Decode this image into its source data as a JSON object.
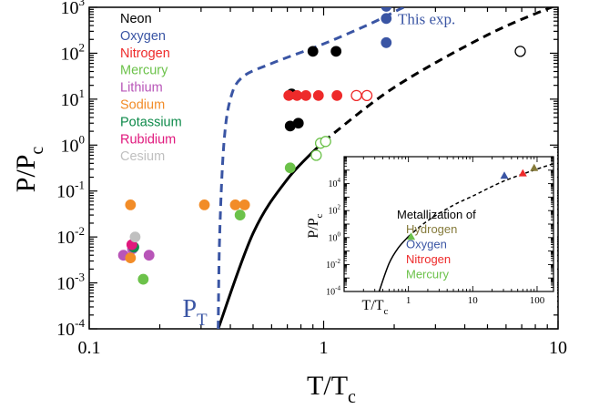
{
  "chart_data": [
    {
      "type": "scatter",
      "title": "",
      "xlabel": "T/T",
      "xlabel_sub": "c",
      "ylabel": "P/P",
      "ylabel_sub": "c",
      "xscale": "log",
      "yscale": "log",
      "xlim": [
        0.1,
        10
      ],
      "ylim": [
        0.0001,
        1000
      ],
      "x_tick_labels": [
        {
          "v": 0.1,
          "t": "0.1"
        },
        {
          "v": 1,
          "t": "1"
        },
        {
          "v": 10,
          "t": "10"
        }
      ],
      "y_tick_labels": [
        {
          "v": 0.0001,
          "b": "10",
          "e": "-4"
        },
        {
          "v": 0.001,
          "b": "10",
          "e": "-3"
        },
        {
          "v": 0.01,
          "b": "10",
          "e": "-2"
        },
        {
          "v": 0.1,
          "b": "10",
          "e": "-1"
        },
        {
          "v": 1,
          "b": "10",
          "e": "0"
        },
        {
          "v": 10,
          "b": "10",
          "e": "1"
        },
        {
          "v": 100,
          "b": "10",
          "e": "2"
        },
        {
          "v": 1000,
          "b": "10",
          "e": "3"
        }
      ],
      "legend_position": "top-left",
      "legend": [
        {
          "name": "Neon",
          "color": "#000000"
        },
        {
          "name": "Oxygen",
          "color": "#3a55a4"
        },
        {
          "name": "Nitrogen",
          "color": "#ee2a2a"
        },
        {
          "name": "Mercury",
          "color": "#6cc24a"
        },
        {
          "name": "Lithium",
          "color": "#b855b8"
        },
        {
          "name": "Sodium",
          "color": "#f28c28"
        },
        {
          "name": "Potassium",
          "color": "#0e8a4a"
        },
        {
          "name": "Rubidium",
          "color": "#e0197d"
        },
        {
          "name": "Cesium",
          "color": "#c0c0c0"
        }
      ],
      "points": [
        {
          "series": "Neon",
          "color": "#000000",
          "x": 0.9,
          "y": 110,
          "filled": true
        },
        {
          "series": "Neon",
          "color": "#000000",
          "x": 1.13,
          "y": 110,
          "filled": true
        },
        {
          "series": "Neon",
          "color": "#000000",
          "x": 0.73,
          "y": 13,
          "filled": true
        },
        {
          "series": "Neon",
          "color": "#000000",
          "x": 0.72,
          "y": 2.6,
          "filled": true
        },
        {
          "series": "Neon",
          "color": "#000000",
          "x": 0.78,
          "y": 3.0,
          "filled": true
        },
        {
          "series": "Neon",
          "color": "#000000",
          "x": 6.9,
          "y": 110,
          "filled": false
        },
        {
          "series": "Oxygen",
          "color": "#3a55a4",
          "x": 1.85,
          "y": 1050,
          "filled": true
        },
        {
          "series": "Oxygen",
          "color": "#3a55a4",
          "x": 1.85,
          "y": 570,
          "filled": true
        },
        {
          "series": "Oxygen",
          "color": "#3a55a4",
          "x": 1.85,
          "y": 170,
          "filled": true
        },
        {
          "series": "Nitrogen",
          "color": "#ee2a2a",
          "x": 0.71,
          "y": 12,
          "filled": true
        },
        {
          "series": "Nitrogen",
          "color": "#ee2a2a",
          "x": 0.77,
          "y": 12,
          "filled": true
        },
        {
          "series": "Nitrogen",
          "color": "#ee2a2a",
          "x": 0.84,
          "y": 12,
          "filled": true
        },
        {
          "series": "Nitrogen",
          "color": "#ee2a2a",
          "x": 0.95,
          "y": 12,
          "filled": true
        },
        {
          "series": "Nitrogen",
          "color": "#ee2a2a",
          "x": 1.14,
          "y": 12,
          "filled": true
        },
        {
          "series": "Nitrogen",
          "color": "#ee2a2a",
          "x": 1.38,
          "y": 12,
          "filled": false
        },
        {
          "series": "Nitrogen",
          "color": "#ee2a2a",
          "x": 1.53,
          "y": 12,
          "filled": false
        },
        {
          "series": "Mercury",
          "color": "#6cc24a",
          "x": 0.72,
          "y": 0.32,
          "filled": true
        },
        {
          "series": "Mercury",
          "color": "#6cc24a",
          "x": 0.44,
          "y": 0.03,
          "filled": true
        },
        {
          "series": "Mercury",
          "color": "#6cc24a",
          "x": 0.17,
          "y": 0.0012,
          "filled": true
        },
        {
          "series": "Mercury",
          "color": "#6cc24a",
          "x": 0.93,
          "y": 0.6,
          "filled": false
        },
        {
          "series": "Mercury",
          "color": "#6cc24a",
          "x": 0.97,
          "y": 1.1,
          "filled": false
        },
        {
          "series": "Mercury",
          "color": "#6cc24a",
          "x": 1.02,
          "y": 1.2,
          "filled": false
        },
        {
          "series": "Lithium",
          "color": "#b855b8",
          "x": 0.14,
          "y": 0.004,
          "filled": true
        },
        {
          "series": "Lithium",
          "color": "#b855b8",
          "x": 0.18,
          "y": 0.004,
          "filled": true
        },
        {
          "series": "Lithium",
          "color": "#b855b8",
          "x": 0.153,
          "y": 0.0055,
          "filled": true
        },
        {
          "series": "Sodium",
          "color": "#f28c28",
          "x": 0.15,
          "y": 0.05,
          "filled": true
        },
        {
          "series": "Sodium",
          "color": "#f28c28",
          "x": 0.31,
          "y": 0.05,
          "filled": true
        },
        {
          "series": "Sodium",
          "color": "#f28c28",
          "x": 0.42,
          "y": 0.05,
          "filled": true
        },
        {
          "series": "Sodium",
          "color": "#f28c28",
          "x": 0.46,
          "y": 0.05,
          "filled": true
        },
        {
          "series": "Sodium",
          "color": "#f28c28",
          "x": 0.15,
          "y": 0.0035,
          "filled": true
        },
        {
          "series": "Potassium",
          "color": "#0e8a4a",
          "x": 0.155,
          "y": 0.006,
          "filled": true
        },
        {
          "series": "Rubidium",
          "color": "#e0197d",
          "x": 0.152,
          "y": 0.0068,
          "filled": true
        },
        {
          "series": "Cesium",
          "color": "#c0c0c0",
          "x": 0.157,
          "y": 0.01,
          "filled": true
        }
      ],
      "phase_lines": [
        {
          "style": "solid",
          "color": "#000000",
          "points": [
            [
              0.355,
              0.0001
            ],
            [
              0.5,
              0.012
            ],
            [
              0.7,
              0.18
            ],
            [
              1.0,
              1.2
            ]
          ]
        },
        {
          "style": "dashed",
          "color": "#000000",
          "points": [
            [
              1.0,
              1.2
            ],
            [
              2.0,
              18
            ],
            [
              5.0,
              250
            ],
            [
              10.0,
              1150
            ]
          ]
        },
        {
          "style": "dashed",
          "color": "#3a55a4",
          "points": [
            [
              0.355,
              0.0001
            ],
            [
              0.36,
              0.01
            ],
            [
              0.375,
              1
            ],
            [
              0.4,
              10
            ],
            [
              0.45,
              30
            ],
            [
              0.6,
              60
            ],
            [
              1.0,
              160
            ],
            [
              1.6,
              450
            ],
            [
              2.2,
              1000
            ],
            [
              2.6,
              1300
            ]
          ]
        }
      ],
      "annotations": [
        {
          "text": "This exp.",
          "color": "#3a55a4",
          "x": 2.0,
          "y": 570
        },
        {
          "text": "P",
          "sub": "T",
          "color": "#3a55a4",
          "x": 0.25,
          "y": 0.00018
        }
      ]
    },
    {
      "type": "scatter",
      "title": "Metallization of",
      "xlabel": "T/T",
      "xlabel_sub": "c",
      "ylabel": "P/P",
      "ylabel_sub": "c",
      "xscale": "log",
      "yscale": "log",
      "xlim": [
        0.1,
        180
      ],
      "ylim": [
        0.0001,
        1000000
      ],
      "x_tick_labels": [
        {
          "v": 1,
          "t": "1"
        },
        {
          "v": 10,
          "t": "10"
        },
        {
          "v": 100,
          "t": "100"
        }
      ],
      "y_tick_labels": [
        {
          "v": 0.0001,
          "b": "10",
          "e": "-4"
        },
        {
          "v": 0.01,
          "b": "10",
          "e": "-2"
        },
        {
          "v": 1,
          "b": "10",
          "e": "0"
        },
        {
          "v": 100,
          "b": "10",
          "e": "2"
        },
        {
          "v": 10000,
          "b": "10",
          "e": "4"
        }
      ],
      "legend_position": "center-right",
      "legend": [
        {
          "name": "Hydrogen",
          "color": "#857a3a"
        },
        {
          "name": "Oxygen",
          "color": "#3a55a4"
        },
        {
          "name": "Nitrogen",
          "color": "#ee2a2a"
        },
        {
          "name": "Mercury",
          "color": "#6cc24a"
        }
      ],
      "points": [
        {
          "series": "Hydrogen",
          "color": "#857a3a",
          "x": 90,
          "y": 150000
        },
        {
          "series": "Oxygen",
          "color": "#3a55a4",
          "x": 31,
          "y": 40000
        },
        {
          "series": "Nitrogen",
          "color": "#ee2a2a",
          "x": 60,
          "y": 60000
        },
        {
          "series": "Mercury",
          "color": "#6cc24a",
          "x": 1.1,
          "y": 1.2
        }
      ],
      "phase_lines": [
        {
          "style": "solid",
          "color": "#000000",
          "points": [
            [
              0.35,
              0.0001
            ],
            [
              0.5,
              0.012
            ],
            [
              0.7,
              0.18
            ],
            [
              1.0,
              1.2
            ]
          ]
        },
        {
          "style": "dashed",
          "color": "#000000",
          "points": [
            [
              1.0,
              1.2
            ],
            [
              2.0,
              18
            ],
            [
              5.0,
              250
            ],
            [
              10.0,
              1200
            ],
            [
              30,
              15000
            ],
            [
              100,
              120000
            ],
            [
              180,
              300000
            ]
          ]
        }
      ]
    }
  ]
}
